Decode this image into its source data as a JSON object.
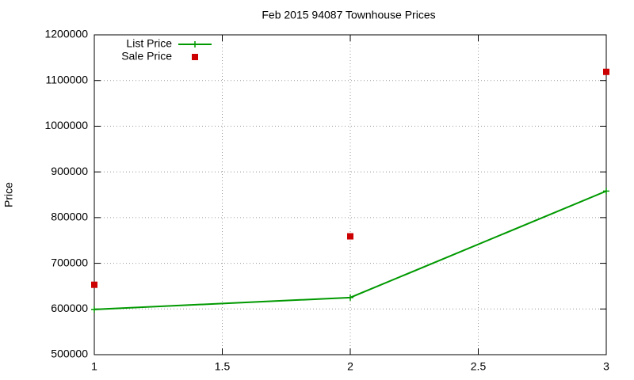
{
  "chart_data": {
    "type": "line",
    "title": "Feb 2015 94087 Townhouse Prices",
    "y_label": "Price",
    "x": [
      1,
      2,
      3
    ],
    "series": [
      {
        "name": "List Price",
        "color": "#009900",
        "style": "linespoints",
        "values": [
          599000,
          625000,
          858000
        ]
      },
      {
        "name": "Sale Price",
        "color": "#cc0000",
        "style": "points",
        "values": [
          653000,
          759000,
          1119000
        ]
      }
    ],
    "xlim": [
      1,
      3
    ],
    "xticks": [
      1,
      1.5,
      2,
      2.5,
      3
    ],
    "ylim": [
      500000,
      1200000
    ],
    "yticks": [
      500000,
      600000,
      700000,
      800000,
      900000,
      1000000,
      1100000,
      1200000
    ],
    "grid": true,
    "legend": "top-left"
  }
}
